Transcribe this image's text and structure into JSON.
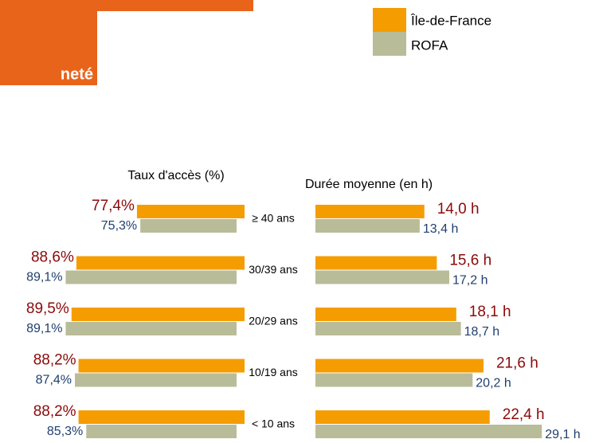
{
  "header": {
    "title": "neté"
  },
  "chart_data": [
    {
      "type": "hbar-left",
      "title": "Taux d'accès (%)",
      "categories": [
        "≥ 40 ans",
        "30/39 ans",
        "20/29 ans",
        "10/19 ans",
        "< 10 ans"
      ],
      "xlim": [
        57.5,
        93
      ],
      "series": [
        {
          "name": "Île-de-France",
          "color": "#f59d00",
          "label_color": "#8b0a0a",
          "values": [
            77.4,
            88.6,
            89.5,
            88.2,
            88.2
          ],
          "value_labels": [
            "77,4%",
            "88,6%",
            "89,5%",
            "88,2%",
            "88,2%"
          ]
        },
        {
          "name": "ROFA",
          "color": "#b9bc98",
          "label_color": "#1f3f6e",
          "values": [
            75.3,
            89.1,
            89.1,
            87.4,
            85.3
          ],
          "value_labels": [
            "75,3%",
            "89,1%",
            "89,1%",
            "87,4%",
            "85,3%"
          ]
        }
      ]
    },
    {
      "type": "hbar-right",
      "title": "Durée moyenne (en h)",
      "xlim": [
        0,
        30
      ],
      "series": [
        {
          "name": "Île-de-France",
          "color": "#f59d00",
          "label_color": "#8b0a0a",
          "values": [
            14.0,
            15.6,
            18.1,
            21.6,
            22.4
          ],
          "value_labels": [
            "14,0 h",
            "15,6 h",
            "18,1 h",
            "21,6 h",
            "22,4 h"
          ]
        },
        {
          "name": "ROFA",
          "color": "#b9bc98",
          "label_color": "#1f3f6e",
          "values": [
            13.4,
            17.2,
            18.7,
            20.2,
            29.1
          ],
          "value_labels": [
            "13,4 h",
            "17,2 h",
            "18,7 h",
            "20,2 h",
            "29,1 h"
          ]
        }
      ]
    }
  ]
}
